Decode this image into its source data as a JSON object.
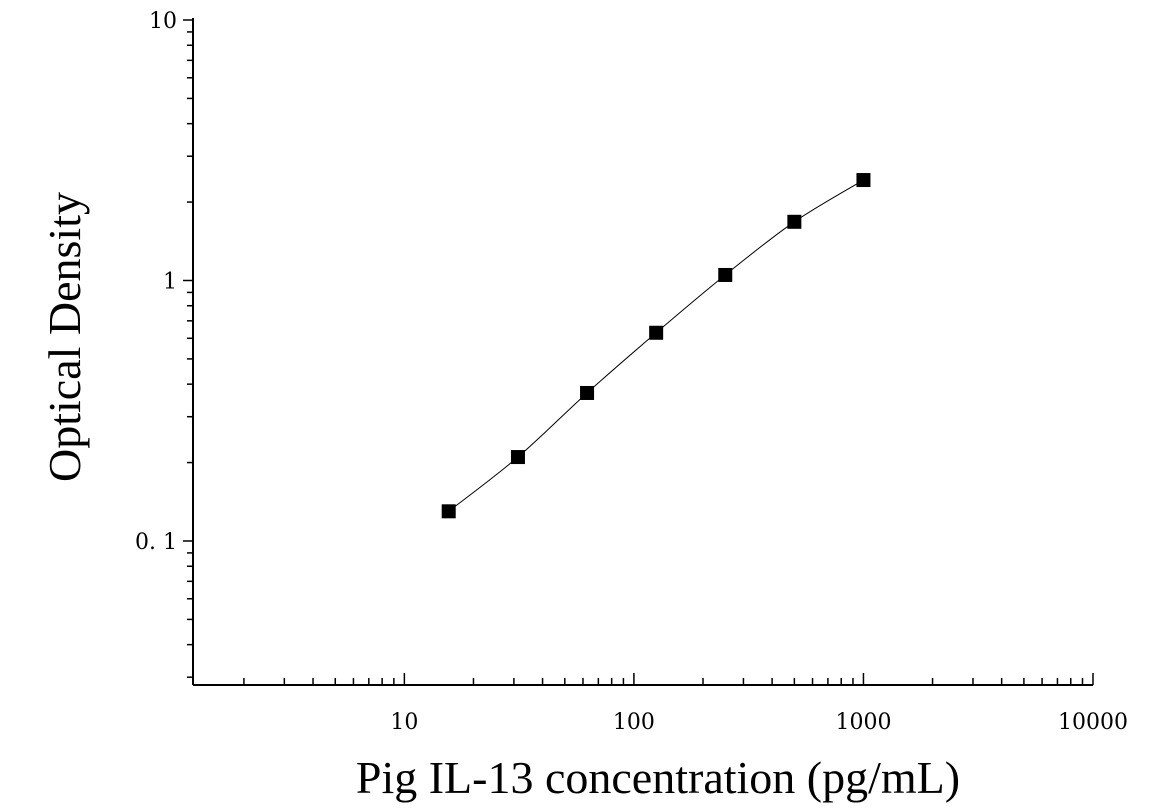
{
  "chart_data": {
    "type": "scatter",
    "title": "",
    "xlabel": "Pig IL-13 concentration (pg/mL)",
    "ylabel": "Optical Density",
    "x_scale": "log",
    "y_scale": "log",
    "xlim": [
      1.2,
      10000
    ],
    "ylim": [
      0.028,
      10
    ],
    "x_ticks": [
      {
        "value": 10,
        "label": "10"
      },
      {
        "value": 100,
        "label": "100"
      },
      {
        "value": 1000,
        "label": "1000"
      },
      {
        "value": 10000,
        "label": "10000"
      }
    ],
    "y_ticks": [
      {
        "value": 0.1,
        "label": "0. 1"
      },
      {
        "value": 1,
        "label": "1"
      },
      {
        "value": 10,
        "label": "10"
      }
    ],
    "grid": false,
    "legend": "none",
    "marker": "square",
    "fit_line": true,
    "color": "#000000",
    "x": [
      15.6,
      31.25,
      62.5,
      125,
      250,
      500,
      1000
    ],
    "y": [
      0.13,
      0.21,
      0.37,
      0.63,
      1.05,
      1.68,
      2.43
    ]
  }
}
